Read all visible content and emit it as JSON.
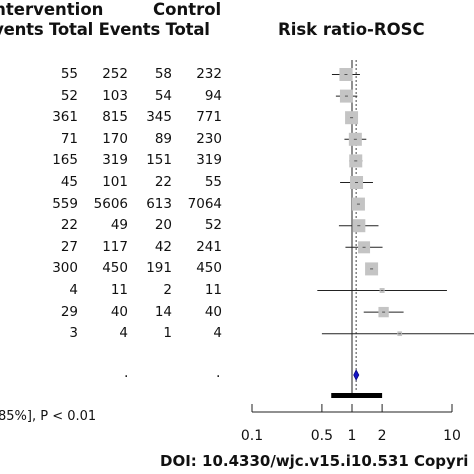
{
  "headers": {
    "intervention": "Intervention",
    "control": "Control",
    "col_headers": "Events Total Events Total",
    "plot_title": "Risk ratio-ROSC"
  },
  "rows": [
    {
      "ie": "55",
      "it": "252",
      "ce": "58",
      "ct": "232"
    },
    {
      "ie": "52",
      "it": "103",
      "ce": "54",
      "ct": "94"
    },
    {
      "ie": "361",
      "it": "815",
      "ce": "345",
      "ct": "771"
    },
    {
      "ie": "71",
      "it": "170",
      "ce": "89",
      "ct": "230"
    },
    {
      "ie": "165",
      "it": "319",
      "ce": "151",
      "ct": "319"
    },
    {
      "ie": "45",
      "it": "101",
      "ce": "22",
      "ct": "55"
    },
    {
      "ie": "559",
      "it": "5606",
      "ce": "613",
      "ct": "7064"
    },
    {
      "ie": "22",
      "it": "49",
      "ce": "20",
      "ct": "52"
    },
    {
      "ie": "27",
      "it": "117",
      "ce": "42",
      "ct": "241"
    },
    {
      "ie": "300",
      "it": "450",
      "ce": "191",
      "ct": "450"
    },
    {
      "ie": "4",
      "it": "11",
      "ce": "2",
      "ct": "11"
    },
    {
      "ie": "29",
      "it": "40",
      "ce": "14",
      "ct": "40"
    },
    {
      "ie": "3",
      "it": "4",
      "ce": "1",
      "ct": "4"
    }
  ],
  "summary_dots": [
    ".",
    "."
  ],
  "footer_text": "85%], P < 0.01",
  "doi_text": "DOI: 10.4330/wjc.v15.i10.531  Copyri",
  "chart_data": {
    "type": "scatter",
    "title": "Risk ratio-ROSC",
    "x_scale": "log",
    "xlim": [
      0.1,
      10
    ],
    "x_ticks": [
      0.1,
      0.5,
      1,
      2,
      10
    ],
    "x_tick_labels": [
      "0.1",
      "0.5",
      "1",
      "2",
      "10"
    ],
    "reference_line": 1,
    "pooled_line": 1.1,
    "studies": [
      {
        "rr": 0.87,
        "lo": 0.63,
        "hi": 1.2,
        "w": 3
      },
      {
        "rr": 0.88,
        "lo": 0.69,
        "hi": 1.13,
        "w": 3
      },
      {
        "rr": 0.99,
        "lo": 0.89,
        "hi": 1.11,
        "w": 3
      },
      {
        "rr": 1.08,
        "lo": 0.84,
        "hi": 1.39,
        "w": 3
      },
      {
        "rr": 1.09,
        "lo": 0.94,
        "hi": 1.27,
        "w": 3
      },
      {
        "rr": 1.11,
        "lo": 0.76,
        "hi": 1.62,
        "w": 3
      },
      {
        "rr": 1.16,
        "lo": 1.04,
        "hi": 1.29,
        "w": 3
      },
      {
        "rr": 1.17,
        "lo": 0.74,
        "hi": 1.84,
        "w": 3
      },
      {
        "rr": 1.32,
        "lo": 0.86,
        "hi": 2.02,
        "w": 2.7
      },
      {
        "rr": 1.57,
        "lo": 1.4,
        "hi": 1.77,
        "w": 3
      },
      {
        "rr": 2.0,
        "lo": 0.45,
        "hi": 8.9,
        "w": 0.6
      },
      {
        "rr": 2.07,
        "lo": 1.31,
        "hi": 3.28,
        "w": 2.2
      },
      {
        "rr": 3.0,
        "lo": 0.5,
        "hi": 18.0,
        "w": 0.5
      }
    ],
    "pooled": {
      "rr": 1.1,
      "lo": 1.04,
      "hi": 1.17
    },
    "prediction_interval": {
      "lo": 0.62,
      "hi": 2.0
    }
  }
}
